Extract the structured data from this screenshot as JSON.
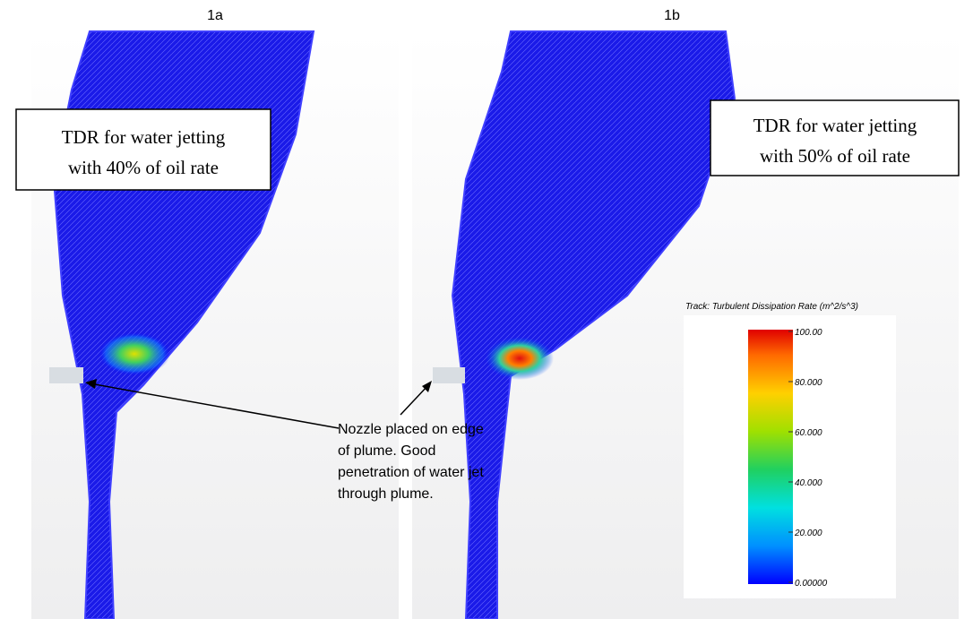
{
  "panels": [
    {
      "label": "1a",
      "box_lines": [
        "TDR for water jetting",
        "with 40% of oil rate"
      ]
    },
    {
      "label": "1b",
      "box_lines": [
        "TDR for water jetting",
        "with 50% of oil rate"
      ]
    }
  ],
  "annotation_lines": [
    "Nozzle placed on edge",
    "of plume.  Good",
    "penetration of water jet",
    "through plume."
  ],
  "colorbar": {
    "title": "Track: Turbulent Dissipation Rate (m^2/s^3)",
    "ticks": [
      {
        "value": 100,
        "label": "100.00"
      },
      {
        "value": 80,
        "label": "80.000"
      },
      {
        "value": 60,
        "label": "60.000"
      },
      {
        "value": 40,
        "label": "40.000"
      },
      {
        "value": 20,
        "label": "20.000"
      },
      {
        "value": 0,
        "label": "0.00000"
      }
    ]
  }
}
